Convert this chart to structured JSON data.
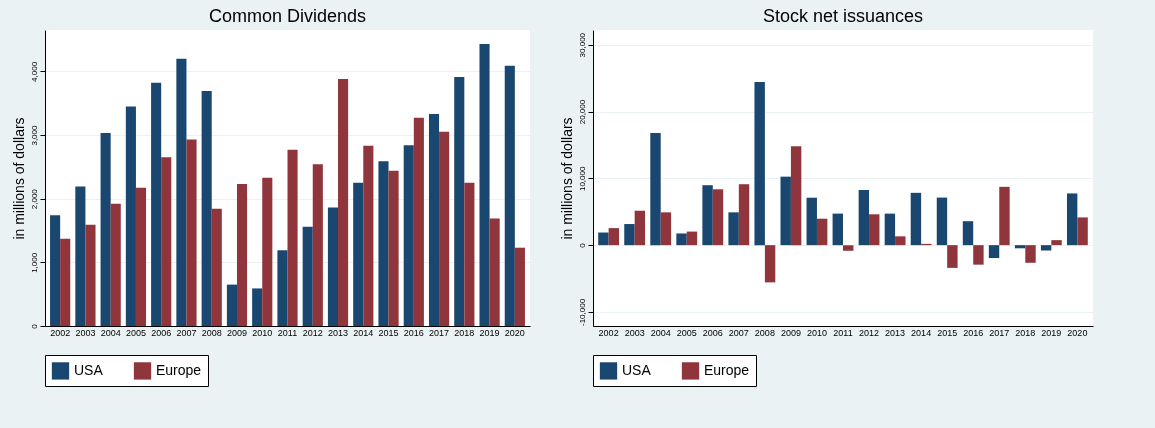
{
  "chart_data": [
    {
      "type": "bar",
      "title": "Common Dividends",
      "ylabel": "in millions of dollars",
      "categories": [
        "2002",
        "2003",
        "2004",
        "2005",
        "2006",
        "2007",
        "2008",
        "2009",
        "2010",
        "2011",
        "2012",
        "2013",
        "2014",
        "2015",
        "2016",
        "2017",
        "2018",
        "2019",
        "2020"
      ],
      "series": [
        {
          "name": "USA",
          "color": "#1a476f",
          "values": [
            1740,
            2190,
            3030,
            3450,
            3820,
            4200,
            3690,
            650,
            590,
            1190,
            1560,
            1860,
            2250,
            2590,
            2840,
            3330,
            3910,
            4430,
            4090
          ]
        },
        {
          "name": "Europe",
          "color": "#90353b",
          "values": [
            1370,
            1590,
            1920,
            2170,
            2650,
            2930,
            1840,
            2230,
            2330,
            2770,
            2540,
            3880,
            2830,
            2440,
            3270,
            3050,
            2250,
            1690,
            1230
          ]
        }
      ],
      "ylim": [
        0,
        4650
      ],
      "yticks": [
        0,
        {
          "value": 1000,
          "label": "1,000"
        },
        {
          "value": 2000,
          "label": "2,000"
        },
        {
          "value": 3000,
          "label": "3,000"
        },
        {
          "value": 4000,
          "label": "4,000"
        }
      ],
      "grid": "y",
      "legend": "bottom"
    },
    {
      "type": "bar",
      "title": "Stock net issuances",
      "ylabel": "in millions of dollars",
      "categories": [
        "2002",
        "2003",
        "2004",
        "2005",
        "2006",
        "2007",
        "2008",
        "2009",
        "2010",
        "2011",
        "2012",
        "2013",
        "2014",
        "2015",
        "2016",
        "2017",
        "2018",
        "2019",
        "2020"
      ],
      "series": [
        {
          "name": "USA",
          "color": "#1a476f",
          "values": [
            1890,
            3160,
            16770,
            1750,
            8970,
            4910,
            24420,
            10250,
            7100,
            4720,
            8250,
            4720,
            7830,
            7120,
            3580,
            -1930,
            -470,
            -800,
            7740
          ]
        },
        {
          "name": "Europe",
          "color": "#90353b",
          "values": [
            2550,
            5150,
            4910,
            2030,
            8360,
            9120,
            -5570,
            14790,
            3960,
            -850,
            4620,
            1320,
            190,
            -3400,
            -2920,
            8730,
            -2640,
            750,
            4150
          ]
        }
      ],
      "ylim": [
        -12100,
        32200
      ],
      "yticks": [
        {
          "value": -10000,
          "label": "-10,000"
        },
        0,
        {
          "value": 10000,
          "label": "10,000"
        },
        {
          "value": 20000,
          "label": "20,000"
        },
        {
          "value": 30000,
          "label": "30,000"
        }
      ],
      "grid": "y",
      "legend": "bottom"
    }
  ]
}
